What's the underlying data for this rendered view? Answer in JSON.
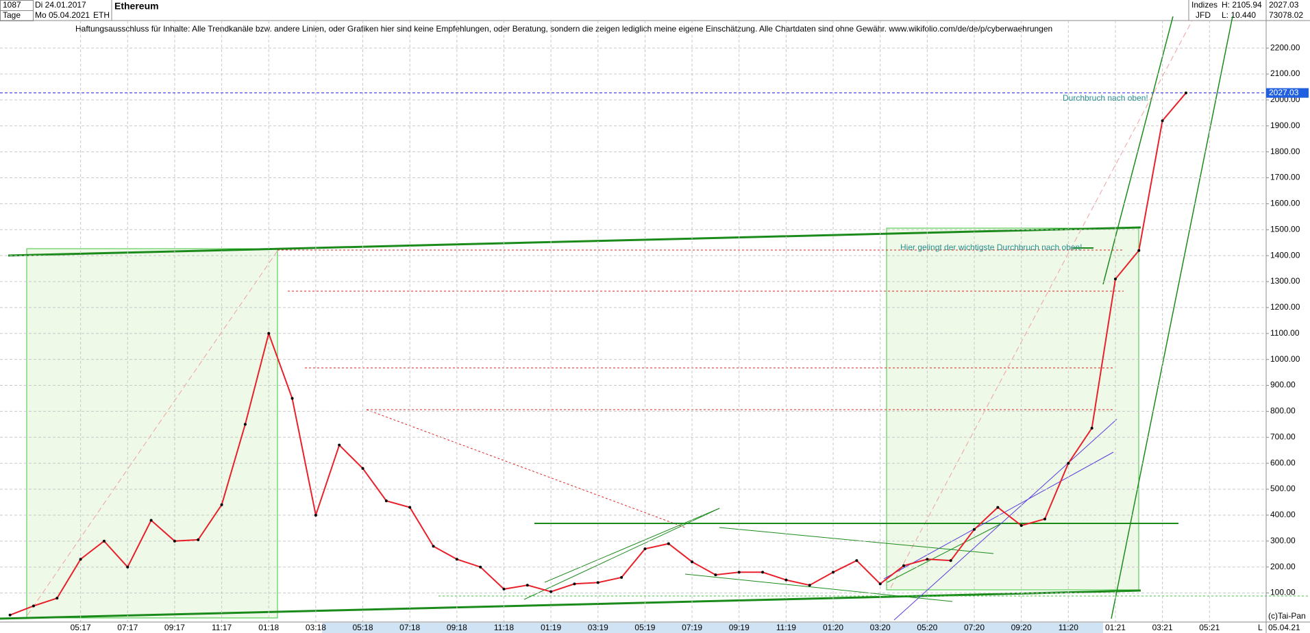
{
  "header": {
    "count": "1087",
    "start": "Di 24.01.2017",
    "period": "Tage",
    "end": "Mo 05.04.2021",
    "symbol": "ETH",
    "name": "Ethereum",
    "disclaimer": "Haftungsausschluss für Inhalte: Alle Trendkanäle bzw. andere Linien, oder Grafiken hier sind keine Empfehlungen, oder Beratung, sondern die zeigen lediglich meine eigene Einschätzung. Alle Chartdaten sind ohne Gewähr.  www.wikifolio.com/de/de/p/cyberwaehrungen",
    "market": "Indizes",
    "broker": "JFD",
    "high": "H: 2105.94",
    "low": "L: 10.440",
    "last": "2027.03",
    "volume": "73078.02"
  },
  "footer": {
    "copyright": "(c)Tai-Pan",
    "date": "05.04.21",
    "scale": "L"
  },
  "chart_data": {
    "type": "line",
    "color": "#e8202a",
    "grid": true,
    "annotations": [
      "Durchbruch nach oben!",
      "Hier gelingt der wichtigste Durchbruch nach oben!"
    ],
    "price_line": 2027.03,
    "categories": [
      null,
      null,
      null,
      "05:17",
      null,
      "07:17",
      null,
      "09:17",
      null,
      "11:17",
      null,
      "01:18",
      null,
      "03:18",
      null,
      "05:18",
      null,
      "07:18",
      null,
      "09:18",
      null,
      "11:18",
      null,
      "01:19",
      null,
      "03:19",
      null,
      "05:19",
      null,
      "07:19",
      null,
      "09:19",
      null,
      "11:19",
      null,
      "01:20",
      null,
      "03:20",
      null,
      "05:20",
      null,
      "07:20",
      null,
      "09:20",
      null,
      "11:20",
      null,
      "01:21",
      null,
      "03:21",
      null,
      "05:21"
    ],
    "series": [
      {
        "name": "Ethereum",
        "color": "#e8202a",
        "values": [
          15,
          50,
          80,
          230,
          300,
          200,
          380,
          300,
          305,
          440,
          750,
          1100,
          850,
          400,
          670,
          580,
          455,
          430,
          280,
          230,
          200,
          115,
          130,
          105,
          135,
          140,
          160,
          270,
          290,
          220,
          170,
          180,
          180,
          150,
          130,
          180,
          225,
          135,
          205,
          230,
          225,
          345,
          430,
          360,
          385,
          600,
          735,
          1310,
          1420,
          1920,
          2027,
          null
        ]
      }
    ],
    "ylim": [
      -12,
      2306
    ],
    "yticks": [
      {
        "value": 100,
        "label": "100.00"
      },
      {
        "value": 200,
        "label": "200.00"
      },
      {
        "value": 300,
        "label": "300.00"
      },
      {
        "value": 400,
        "label": "400.00"
      },
      {
        "value": 500,
        "label": "500.00"
      },
      {
        "value": 600,
        "label": "600.00"
      },
      {
        "value": 700,
        "label": "700.00"
      },
      {
        "value": 800,
        "label": "800.00"
      },
      {
        "value": 900,
        "label": "900.00"
      },
      {
        "value": 1000,
        "label": "1000.00"
      },
      {
        "value": 1100,
        "label": "1100.00"
      },
      {
        "value": 1200,
        "label": "1200.00"
      },
      {
        "value": 1300,
        "label": "1300.00"
      },
      {
        "value": 1400,
        "label": "1400.00"
      },
      {
        "value": 1500,
        "label": "1500.00"
      },
      {
        "value": 1600,
        "label": "1600.00"
      },
      {
        "value": 1700,
        "label": "1700.00"
      },
      {
        "value": 1800,
        "label": "1800.00"
      },
      {
        "value": 1900,
        "label": "1900.00"
      },
      {
        "value": 2000,
        "label": "2000.00"
      },
      {
        "value": 2100,
        "label": "2100.00"
      },
      {
        "value": 2200,
        "label": "2200.00"
      }
    ]
  }
}
